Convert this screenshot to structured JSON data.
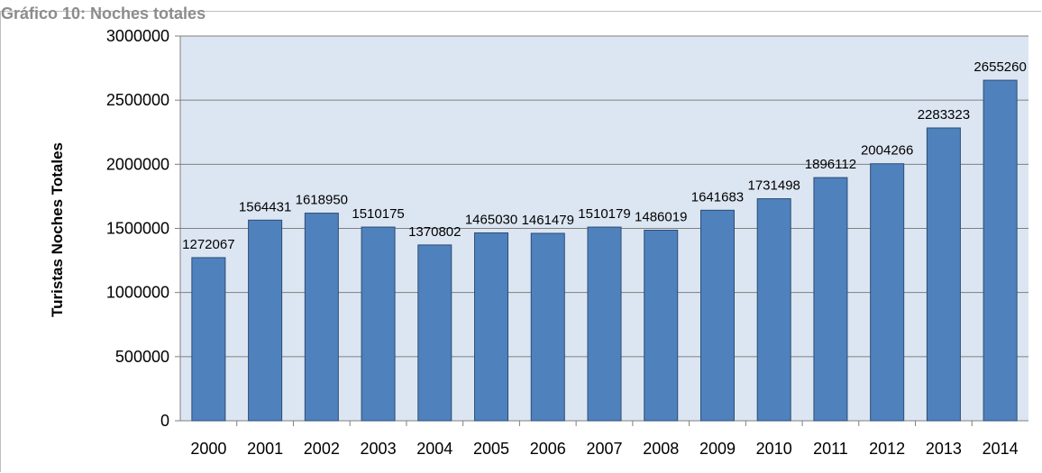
{
  "figure": {
    "title": "Gráfico 10: Noches totales"
  },
  "chart_data": {
    "type": "bar",
    "title": "",
    "xlabel": "",
    "ylabel": "Turistas Noches Totales",
    "categories": [
      "2000",
      "2001",
      "2002",
      "2003",
      "2004",
      "2005",
      "2006",
      "2007",
      "2008",
      "2009",
      "2010",
      "2011",
      "2012",
      "2013",
      "2014"
    ],
    "series": [
      {
        "values": [
          1272067,
          1564431,
          1618950,
          1510175,
          1370802,
          1465030,
          1461479,
          1510179,
          1486019,
          1641683,
          1731498,
          1896112,
          2004266,
          2283323,
          2655260
        ],
        "data_labels": [
          "1272067",
          "1564431",
          "1618950",
          "1510175",
          "1370802",
          "1465030",
          "1461479",
          "1510179",
          "1486019",
          "1641683",
          "1731498",
          "1896112",
          "2004266",
          "2283323",
          "2655260"
        ]
      }
    ],
    "ylim": [
      0,
      3000000
    ],
    "y_ticks": [
      0,
      500000,
      1000000,
      1500000,
      2000000,
      2500000,
      3000000
    ],
    "y_tick_labels": [
      "0",
      "500000",
      "1000000",
      "1500000",
      "2000000",
      "2500000",
      "3000000"
    ],
    "grid": true,
    "legend": "none",
    "colors": {
      "bar_fill": "#4f81bd",
      "bar_stroke": "#2c4d75",
      "plot_background": "#dce6f2",
      "gridline": "#7f7f7f",
      "axis": "#7f7f7f",
      "text": "#000000"
    }
  }
}
